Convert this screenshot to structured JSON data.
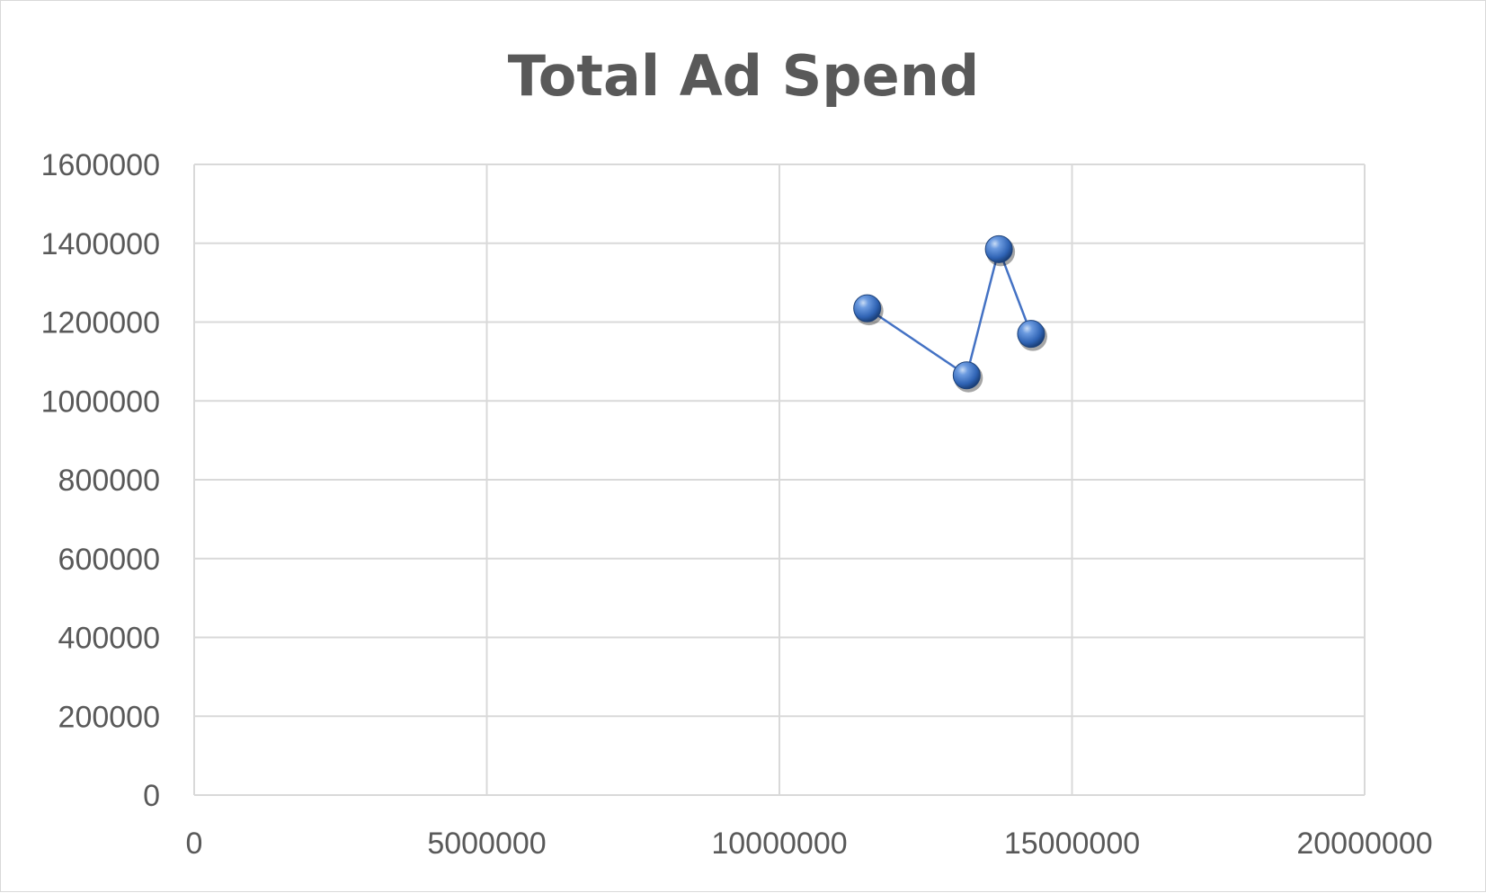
{
  "chart_data": {
    "type": "scatter",
    "title": "Total Ad Spend",
    "xlabel": "",
    "ylabel": "",
    "xlim": [
      0,
      20000000
    ],
    "ylim": [
      0,
      1600000
    ],
    "x_ticks": [
      0,
      5000000,
      10000000,
      15000000,
      20000000
    ],
    "y_ticks": [
      0,
      200000,
      400000,
      600000,
      800000,
      1000000,
      1200000,
      1400000,
      1600000
    ],
    "grid": true,
    "legend": "none",
    "series": [
      {
        "points": [
          {
            "x": 11500000,
            "y": 1235000
          },
          {
            "x": 13200000,
            "y": 1065000
          },
          {
            "x": 13750000,
            "y": 1385000
          },
          {
            "x": 14300000,
            "y": 1170000
          }
        ],
        "color": "#4472c4",
        "marker": "sphere",
        "connected": true
      }
    ]
  }
}
